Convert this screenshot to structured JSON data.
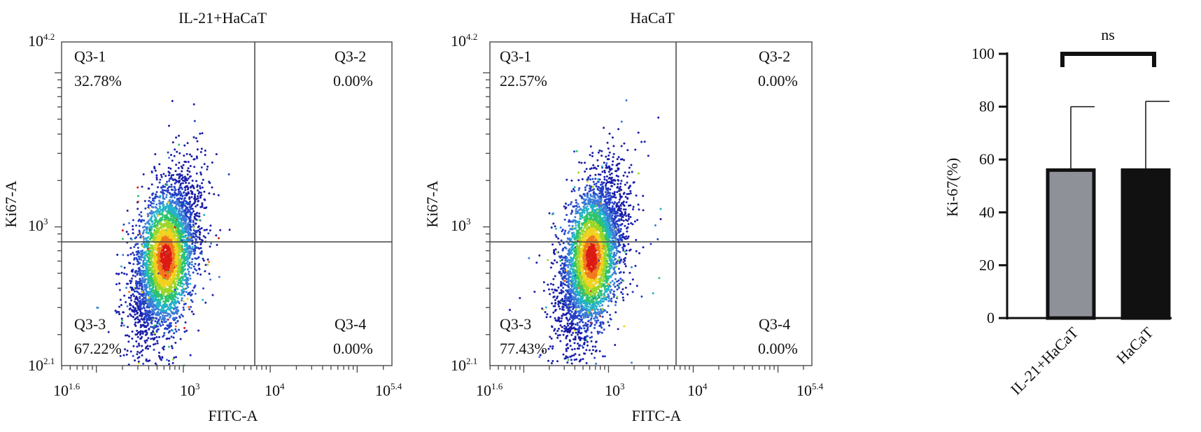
{
  "panels": [
    {
      "title": "IL-21+HaCaT",
      "xlabel": "FITC-A",
      "ylabel": "Ki67-A",
      "x_ticks": [
        {
          "base": "10",
          "exp": "1.6"
        },
        {
          "base": "10",
          "exp": "3"
        },
        {
          "base": "10",
          "exp": "4"
        },
        {
          "base": "10",
          "exp": "5.4"
        }
      ],
      "y_ticks": [
        {
          "base": "10",
          "exp": "4.2"
        },
        {
          "base": "10",
          "exp": "3"
        },
        {
          "base": "10",
          "exp": "2.1"
        }
      ],
      "quadrants": {
        "q1": {
          "name": "Q3-1",
          "pct": "32.78%"
        },
        "q2": {
          "name": "Q3-2",
          "pct": "0.00%"
        },
        "q3": {
          "name": "Q3-3",
          "pct": "67.22%"
        },
        "q4": {
          "name": "Q3-4",
          "pct": "0.00%"
        }
      }
    },
    {
      "title": "HaCaT",
      "xlabel": "FITC-A",
      "ylabel": "Ki67-A",
      "x_ticks": [
        {
          "base": "10",
          "exp": "1.6"
        },
        {
          "base": "10",
          "exp": "3"
        },
        {
          "base": "10",
          "exp": "4"
        },
        {
          "base": "10",
          "exp": "5.4"
        }
      ],
      "y_ticks": [
        {
          "base": "10",
          "exp": "4.2"
        },
        {
          "base": "10",
          "exp": "3"
        },
        {
          "base": "10",
          "exp": "2.1"
        }
      ],
      "quadrants": {
        "q1": {
          "name": "Q3-1",
          "pct": "22.57%"
        },
        "q2": {
          "name": "Q3-2",
          "pct": "0.00%"
        },
        "q3": {
          "name": "Q3-3",
          "pct": "77.43%"
        },
        "q4": {
          "name": "Q3-4",
          "pct": "0.00%"
        }
      }
    }
  ],
  "chart_data": [
    {
      "type": "scatter",
      "title": "IL-21+HaCaT",
      "xlabel": "FITC-A",
      "ylabel": "Ki67-A",
      "x_scale": "log",
      "y_scale": "log",
      "xlim_log10": [
        1.6,
        5.4
      ],
      "ylim_log10": [
        2.1,
        4.2
      ],
      "gate_log10": {
        "x": 3.75,
        "y": 2.9
      },
      "cluster_center_log10": {
        "x": 2.8,
        "y": 2.8
      },
      "quadrant_percent": {
        "Q3-1": 32.78,
        "Q3-2": 0.0,
        "Q3-3": 67.22,
        "Q3-4": 0.0
      }
    },
    {
      "type": "scatter",
      "title": "HaCaT",
      "xlabel": "FITC-A",
      "ylabel": "Ki67-A",
      "x_scale": "log",
      "y_scale": "log",
      "xlim_log10": [
        1.6,
        5.4
      ],
      "ylim_log10": [
        2.1,
        4.2
      ],
      "gate_log10": {
        "x": 3.75,
        "y": 2.9
      },
      "cluster_center_log10": {
        "x": 2.8,
        "y": 2.8
      },
      "quadrant_percent": {
        "Q3-1": 22.57,
        "Q3-2": 0.0,
        "Q3-3": 77.43,
        "Q3-4": 0.0
      }
    },
    {
      "type": "bar",
      "categories": [
        "IL-21+HaCaT",
        "HaCaT"
      ],
      "values": [
        56,
        56
      ],
      "error_upper": [
        80,
        82
      ],
      "ylabel": "Ki-67(%)",
      "ylim": [
        0,
        100
      ],
      "yticks": [
        0,
        20,
        40,
        60,
        80,
        100
      ],
      "significance": "ns",
      "colors": [
        "#8e9197",
        "#111111"
      ]
    }
  ]
}
